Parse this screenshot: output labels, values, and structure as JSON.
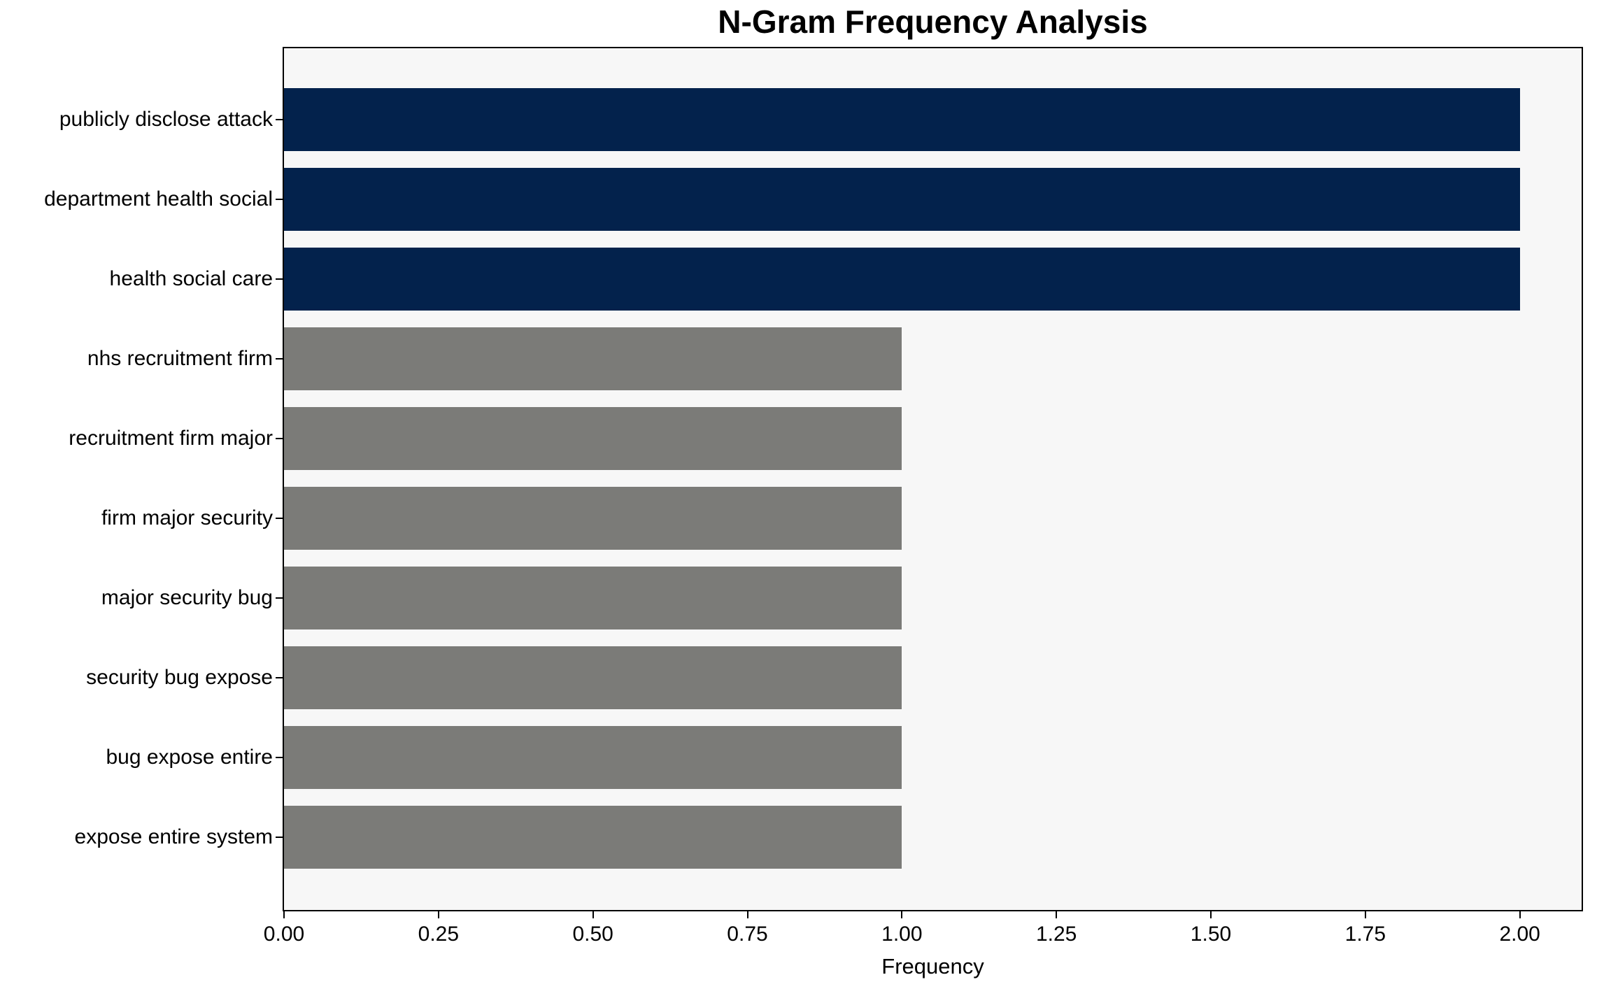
{
  "chart_data": {
    "type": "bar",
    "orientation": "horizontal",
    "title": "N-Gram Frequency Analysis",
    "xlabel": "Frequency",
    "ylabel": "",
    "categories": [
      "publicly disclose attack",
      "department health social",
      "health social care",
      "nhs recruitment firm",
      "recruitment firm major",
      "firm major security",
      "major security bug",
      "security bug expose",
      "bug expose entire",
      "expose entire system"
    ],
    "values": [
      2,
      2,
      2,
      1,
      1,
      1,
      1,
      1,
      1,
      1
    ],
    "bar_colors": [
      "#03224c",
      "#03224c",
      "#03224c",
      "#7b7b78",
      "#7b7b78",
      "#7b7b78",
      "#7b7b78",
      "#7b7b78",
      "#7b7b78",
      "#7b7b78"
    ],
    "xlim": [
      0,
      2.1
    ],
    "xticks": [
      0.0,
      0.25,
      0.5,
      0.75,
      1.0,
      1.25,
      1.5,
      1.75,
      2.0
    ],
    "xtick_labels": [
      "0.00",
      "0.25",
      "0.50",
      "0.75",
      "1.00",
      "1.25",
      "1.50",
      "1.75",
      "2.00"
    ],
    "grid": false,
    "legend": null,
    "colors": {
      "highlight": "#03224c",
      "base": "#7b7b78",
      "plot_background": "#f7f7f7",
      "figure_background": "#ffffff",
      "spine": "#000000"
    }
  }
}
